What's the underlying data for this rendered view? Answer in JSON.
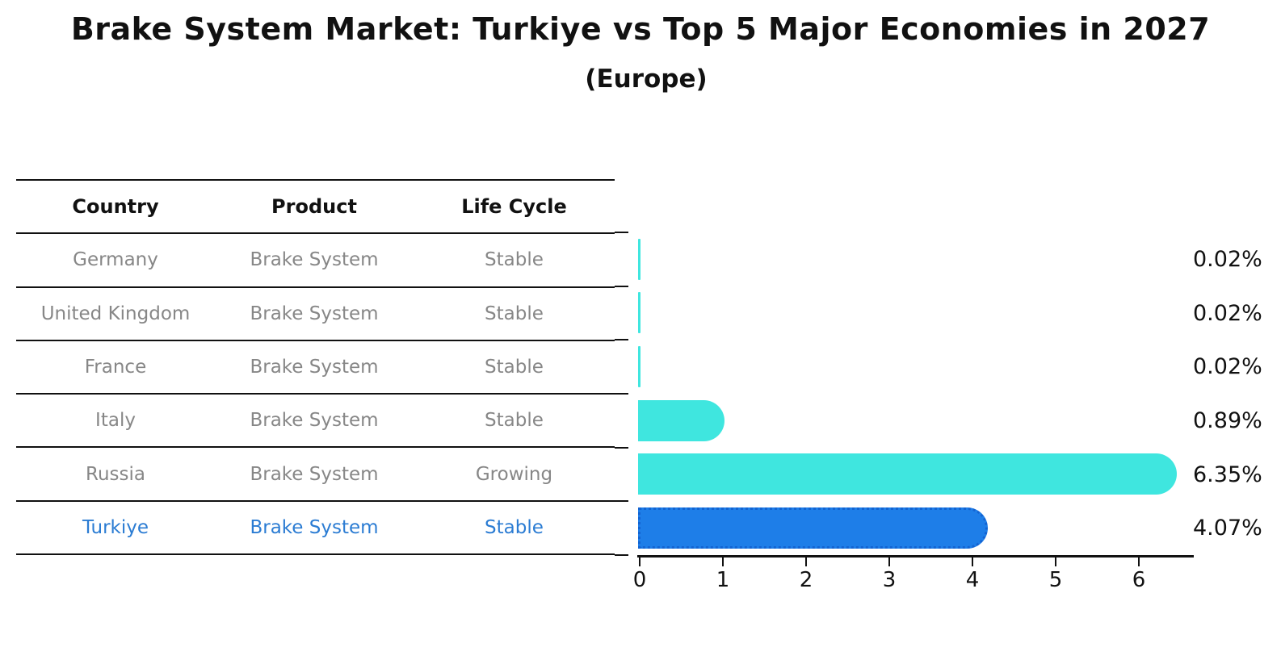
{
  "title": "Brake System Market: Turkiye vs Top 5 Major Economies in 2027",
  "subtitle": "(Europe)",
  "table": {
    "headers": [
      "Country",
      "Product",
      "Life Cycle"
    ],
    "rows": [
      {
        "country": "Germany",
        "product": "Brake System",
        "life_cycle": "Stable",
        "highlight": false
      },
      {
        "country": "United Kingdom",
        "product": "Brake System",
        "life_cycle": "Stable",
        "highlight": false
      },
      {
        "country": "France",
        "product": "Brake System",
        "life_cycle": "Stable",
        "highlight": false
      },
      {
        "country": "Italy",
        "product": "Brake System",
        "life_cycle": "Stable",
        "highlight": false
      },
      {
        "country": "Russia",
        "product": "Brake System",
        "life_cycle": "Growing",
        "highlight": false
      },
      {
        "country": "Turkiye",
        "product": "Brake System",
        "life_cycle": "Stable",
        "highlight": true
      }
    ]
  },
  "chart_data": {
    "type": "bar",
    "orientation": "horizontal",
    "title": "Brake System Market: Turkiye vs Top 5 Major Economies in 2027",
    "subtitle": "(Europe)",
    "categories": [
      "Germany",
      "United Kingdom",
      "France",
      "Italy",
      "Russia",
      "Turkiye"
    ],
    "values": [
      0.02,
      0.02,
      0.02,
      0.89,
      6.35,
      4.07
    ],
    "value_labels": [
      "0.02%",
      "0.02%",
      "0.02%",
      "0.89%",
      "6.35%",
      "4.07%"
    ],
    "x_ticks": [
      "0",
      "1",
      "2",
      "3",
      "4",
      "5",
      "6"
    ],
    "xlim": [
      0,
      6.69
    ],
    "grid": false,
    "legend": false,
    "highlight_category": "Turkiye",
    "highlight_index": 5
  },
  "colors": {
    "bar_default": "#3FE6DF",
    "bar_highlight": "#1E7EE8",
    "highlight_border": "#1464D2",
    "highlight_text": "#2B7CD3",
    "table_text": "#878787",
    "header_text": "#111111",
    "axis": "#111111",
    "background": "#FFFFFF"
  }
}
